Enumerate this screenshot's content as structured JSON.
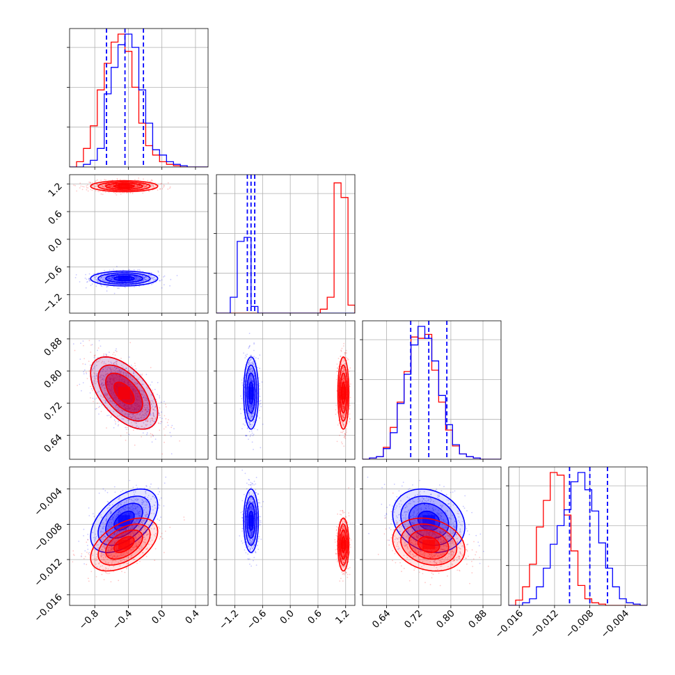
{
  "colors": {
    "blue": "#0000ff",
    "red": "#ff0000",
    "grid": "#b0b0b0",
    "axis": "#000000"
  },
  "chart_data": [
    {
      "type": "corner",
      "description": "Corner plot of 4 parameters comparing two posterior sample sets (blue, red). No axis labels, title or legend are printed.",
      "grid": true,
      "parameters": [
        {
          "index": 0,
          "range": [
            -1.1,
            0.55
          ],
          "ticks": [
            "−0.8",
            "−0.4",
            "0.0",
            "0.4"
          ],
          "tick_values": [
            -0.8,
            -0.4,
            0.0,
            0.4
          ]
        },
        {
          "index": 1,
          "range": [
            -1.6,
            1.4
          ],
          "ticks": [
            "−1.2",
            "−0.6",
            "0.0",
            "0.6",
            "1.2"
          ],
          "tick_values": [
            -1.2,
            -0.6,
            0.0,
            0.6,
            1.2
          ]
        },
        {
          "index": 2,
          "range": [
            0.58,
            0.925
          ],
          "ticks": [
            "0.64",
            "0.72",
            "0.80",
            "0.88"
          ],
          "tick_values": [
            0.64,
            0.72,
            0.8,
            0.88
          ]
        },
        {
          "index": 3,
          "range": [
            -0.0172,
            -0.0015
          ],
          "ticks": [
            "−0.016",
            "−0.012",
            "−0.008",
            "−0.004"
          ],
          "tick_values": [
            -0.016,
            -0.012,
            -0.008,
            -0.004
          ]
        }
      ],
      "series": [
        {
          "color": "blue",
          "means": [
            -0.45,
            -0.85,
            0.745,
            -0.0076
          ],
          "sds": [
            0.2,
            0.08,
            0.045,
            0.0018
          ],
          "corr_0_2": -0.55,
          "corr_0_3": 0.5,
          "corr_2_3": -0.2
        },
        {
          "color": "red",
          "means": [
            -0.45,
            1.15,
            0.745,
            -0.0103
          ],
          "sds": [
            0.2,
            0.06,
            0.045,
            0.0015
          ],
          "corr_0_2": -0.55,
          "corr_0_3": 0.5,
          "corr_2_3": -0.2
        }
      ],
      "quantiles_blue": [
        [
          -0.66,
          -0.44,
          -0.22
        ],
        [
          -0.93,
          -0.85,
          -0.77
        ],
        [
          0.7,
          0.745,
          0.79
        ],
        [
          -0.0103,
          -0.008,
          -0.006
        ]
      ],
      "marginal_hist_bins": 20,
      "histograms": [
        {
          "param": 0,
          "x_start": -1.1,
          "bin_width": 0.0825,
          "blue": [
            0.0,
            0.0,
            0.02,
            0.05,
            0.14,
            0.55,
            0.75,
            0.92,
            1.0,
            0.9,
            0.58,
            0.33,
            0.13,
            0.09,
            0.04,
            0.02,
            0.01,
            0.0,
            0.0,
            0.0
          ],
          "red": [
            0.0,
            0.04,
            0.14,
            0.31,
            0.58,
            0.78,
            0.94,
            1.0,
            0.87,
            0.6,
            0.33,
            0.16,
            0.09,
            0.04,
            0.02,
            0.01,
            0.0,
            0.0,
            0.0,
            0.0
          ]
        },
        {
          "param": 1,
          "x_start": -1.6,
          "bin_width": 0.15,
          "blue": [
            0.0,
            0.0,
            0.12,
            0.54,
            0.57,
            0.05,
            0.0,
            0.0,
            0.0,
            0.0,
            0.0,
            0.0,
            0.0,
            0.0,
            0.0,
            0.0,
            0.0,
            0.0,
            0.0,
            0.0
          ],
          "red": [
            0.0,
            0.0,
            0.0,
            0.0,
            0.0,
            0.0,
            0.0,
            0.0,
            0.0,
            0.0,
            0.0,
            0.0,
            0.0,
            0.0,
            0.0,
            0.03,
            0.12,
            0.98,
            0.87,
            0.06
          ]
        },
        {
          "param": 2,
          "x_start": 0.58,
          "bin_width": 0.01725,
          "blue": [
            0.0,
            0.01,
            0.02,
            0.08,
            0.2,
            0.42,
            0.64,
            0.86,
            1.0,
            0.91,
            0.74,
            0.48,
            0.26,
            0.11,
            0.04,
            0.02,
            0.01,
            0.0,
            0.0,
            0.0
          ],
          "red": [
            0.0,
            0.01,
            0.02,
            0.09,
            0.24,
            0.43,
            0.66,
            0.92,
            0.91,
            0.94,
            0.67,
            0.43,
            0.22,
            0.1,
            0.04,
            0.02,
            0.01,
            0.0,
            0.0,
            0.0
          ]
        },
        {
          "param": 3,
          "x_start": -0.0172,
          "bin_width": 0.000785,
          "blue": [
            0.0,
            0.0,
            0.02,
            0.05,
            0.14,
            0.28,
            0.46,
            0.6,
            0.72,
            0.93,
            1.0,
            0.87,
            0.71,
            0.47,
            0.28,
            0.14,
            0.05,
            0.02,
            0.01,
            0.0
          ],
          "red": [
            0.0,
            0.04,
            0.14,
            0.31,
            0.59,
            0.79,
            1.0,
            0.98,
            0.68,
            0.41,
            0.15,
            0.05,
            0.02,
            0.01,
            0.0,
            0.0,
            0.0,
            0.0,
            0.0,
            0.0
          ]
        }
      ]
    }
  ]
}
